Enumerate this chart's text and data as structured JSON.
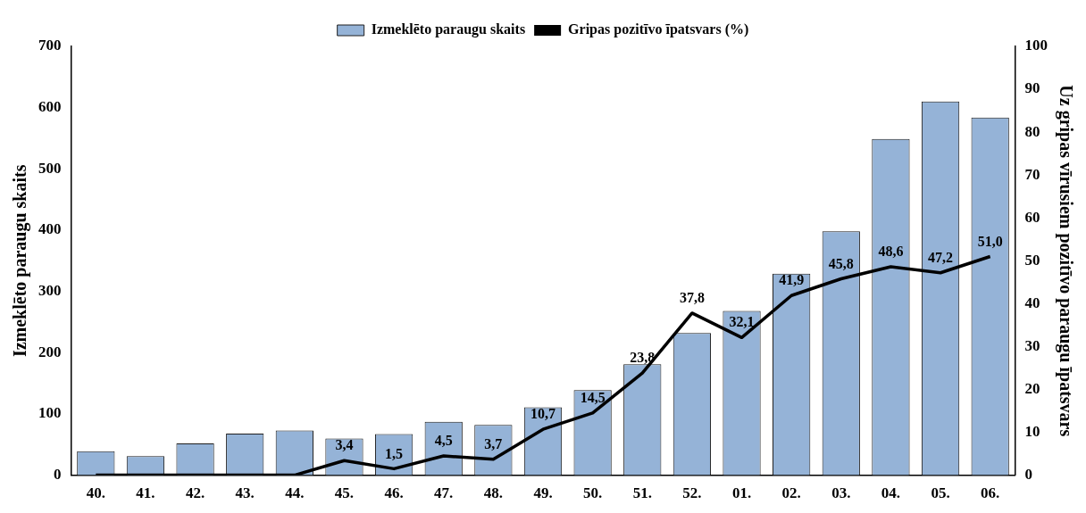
{
  "chart_data": {
    "type": "bar",
    "categories": [
      "40.",
      "41.",
      "42.",
      "43.",
      "44.",
      "45.",
      "46.",
      "47.",
      "48.",
      "49.",
      "50.",
      "51.",
      "52.",
      "01.",
      "02.",
      "03.",
      "04.",
      "05.",
      "06."
    ],
    "ylabel": "Izmeklēto paraugu skaits",
    "y2label": "Uz gripas vīrusiem pozitīvo paraugu īpatsvars",
    "ylim": [
      0,
      700
    ],
    "yticks": [
      0,
      100,
      200,
      300,
      400,
      500,
      600,
      700
    ],
    "y2lim": [
      0,
      100
    ],
    "y2ticks": [
      0,
      10,
      20,
      30,
      40,
      50,
      60,
      70,
      80,
      90,
      100
    ],
    "grid": false,
    "legend": "top",
    "series": [
      {
        "name": "Izmeklēto paraugu skaits",
        "color": "#95b3d7",
        "values": [
          39,
          31,
          52,
          68,
          73,
          60,
          67,
          87,
          82,
          111,
          139,
          181,
          232,
          268,
          329,
          398,
          549,
          610,
          584
        ]
      },
      {
        "name": "Gripas pozitīvo īpatsvars (%)",
        "type": "line",
        "axis": "y2",
        "color": "#000000",
        "marker": "none",
        "line_style": "solid",
        "values": [
          0,
          0,
          0,
          0,
          0,
          3.4,
          1.5,
          4.5,
          3.7,
          10.7,
          14.5,
          23.8,
          37.8,
          32.1,
          41.9,
          45.8,
          48.6,
          47.2,
          51.0
        ],
        "value_labels": [
          null,
          null,
          null,
          null,
          null,
          "3,4",
          "1,5",
          "4,5",
          "3,7",
          "10,7",
          "14,5",
          "23,8",
          "37,8",
          "32,1",
          "41,9",
          "45,8",
          "48,6",
          "47,2",
          "51,0"
        ]
      }
    ]
  }
}
